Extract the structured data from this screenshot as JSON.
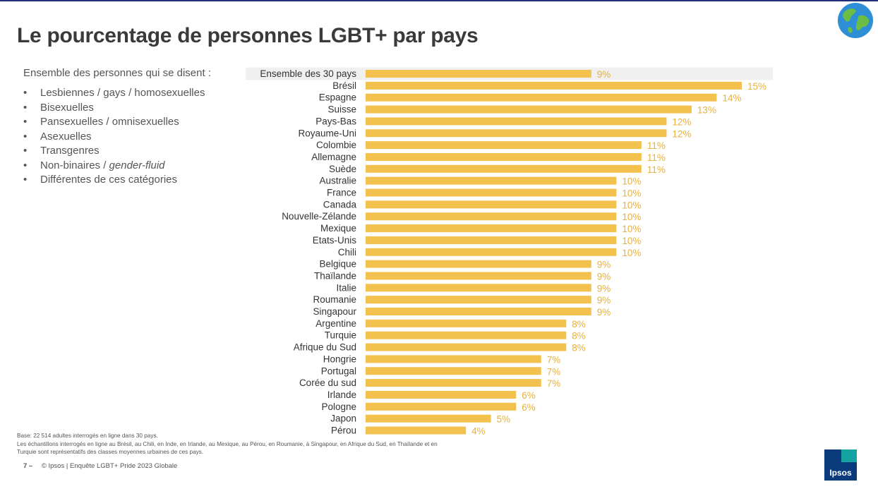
{
  "title": "Le pourcentage de personnes LGBT+ par pays",
  "intro": "Ensemble des personnes qui se disent :",
  "bullets": [
    {
      "text": "Lesbiennes / gays / homosexuelles",
      "italic": ""
    },
    {
      "text": "Bisexuelles",
      "italic": ""
    },
    {
      "text": "Pansexuelles / omnisexuelles",
      "italic": ""
    },
    {
      "text": "Asexuelles",
      "italic": ""
    },
    {
      "text": "Transgenres",
      "italic": ""
    },
    {
      "text": "Non-binaires / ",
      "italic": "gender-fluid"
    },
    {
      "text": "Différentes de ces catégories",
      "italic": ""
    }
  ],
  "bullet_symbol": "•",
  "footnote": {
    "line1": "Base: 22 514 adultes interrogés en ligne dans 30 pays.",
    "line2": "Les échantillons interrogés en ligne au Brésil, au Chili, en Inde, en Irlande, au Mexique, au Pérou, en Roumanie, à Singapour, en Afrique du Sud, en Thaïlande et en Turquie sont représentatifs des classes moyennes urbaines de ces pays."
  },
  "footer": {
    "page": "7 –",
    "text": "© Ipsos | Enquête  LGBT+ Pride 2023 Globale"
  },
  "logo_text": "Ipsos",
  "colors": {
    "bar": "#f2c14e",
    "label": "#e8b13a",
    "highlight_row": "#f0f0f0",
    "text": "#333333"
  },
  "chart_data": {
    "type": "bar",
    "orientation": "horizontal",
    "categories": [
      "Ensemble des 30 pays",
      "Brésil",
      "Espagne",
      "Suisse",
      "Pays-Bas",
      "Royaume-Uni",
      "Colombie",
      "Allemagne",
      "Suède",
      "Australie",
      "France",
      "Canada",
      "Nouvelle-Zélande",
      "Mexique",
      "Etats-Unis",
      "Chili",
      "Belgique",
      "Thaïlande",
      "Italie",
      "Roumanie",
      "Singapour",
      "Argentine",
      "Turquie",
      "Afrique du Sud",
      "Hongrie",
      "Portugal",
      "Corée du sud",
      "Irlande",
      "Pologne",
      "Japon",
      "Pérou"
    ],
    "values": [
      9,
      15,
      14,
      13,
      12,
      12,
      11,
      11,
      11,
      10,
      10,
      10,
      10,
      10,
      10,
      10,
      9,
      9,
      9,
      9,
      9,
      8,
      8,
      8,
      7,
      7,
      7,
      6,
      6,
      5,
      4
    ],
    "value_labels": [
      "9%",
      "15%",
      "14%",
      "13%",
      "12%",
      "12%",
      "11%",
      "11%",
      "11%",
      "10%",
      "10%",
      "10%",
      "10%",
      "10%",
      "10%",
      "10%",
      "9%",
      "9%",
      "9%",
      "9%",
      "9%",
      "8%",
      "8%",
      "8%",
      "7%",
      "7%",
      "7%",
      "6%",
      "6%",
      "5%",
      "4%"
    ],
    "highlighted_category": "Ensemble des 30 pays",
    "xlim": [
      0,
      15
    ],
    "grid": false,
    "legend": "none"
  }
}
